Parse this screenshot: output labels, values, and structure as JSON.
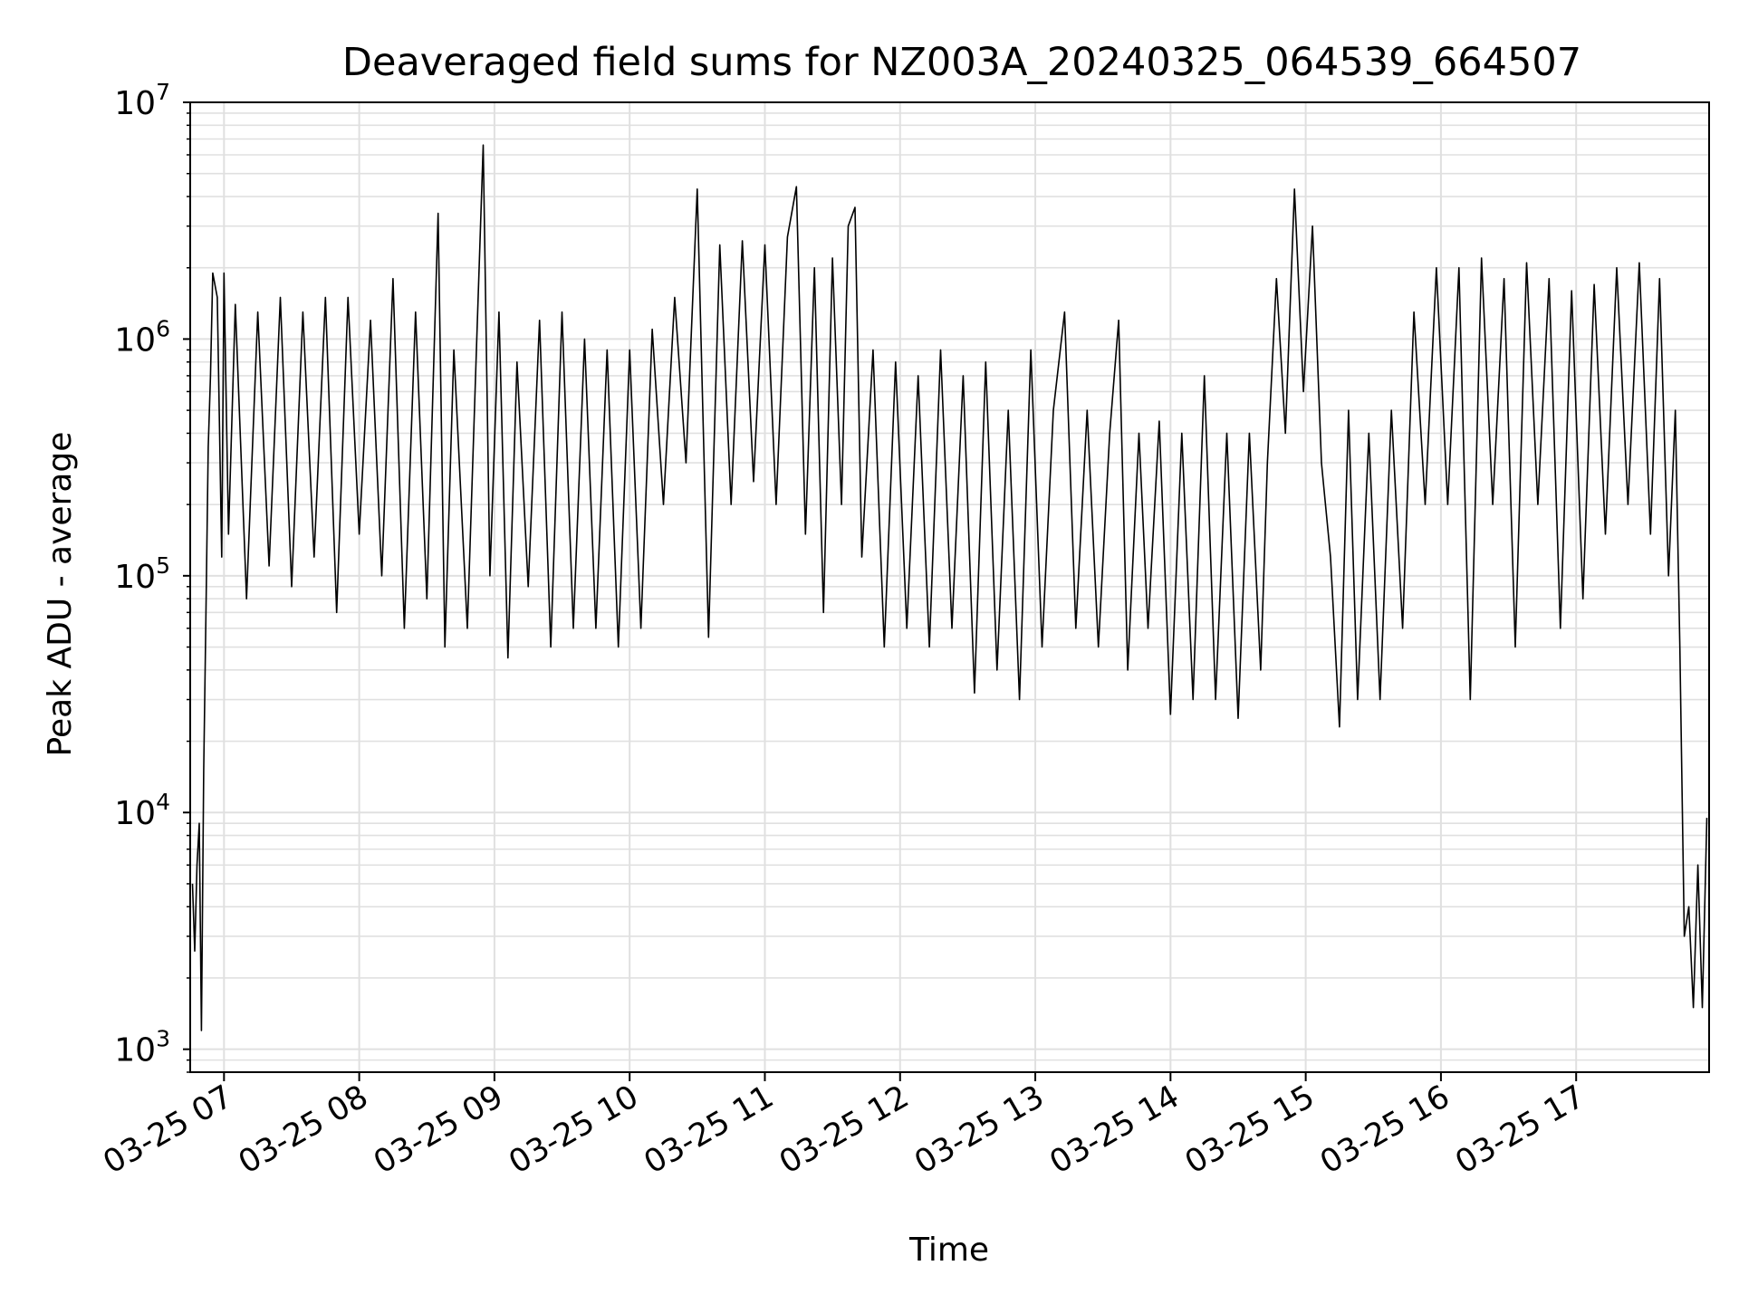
{
  "chart_data": {
    "type": "line",
    "title": "Deaveraged field sums for NZ003A_20240325_064539_664507",
    "xlabel": "Time",
    "ylabel": "Peak ADU - average",
    "yscale": "log",
    "ylim": [
      800,
      10000000
    ],
    "xlim": [
      "03-25 06:45",
      "03-25 17:59"
    ],
    "grid": true,
    "line_color": "#000000",
    "grid_color": "#e0e0e0",
    "x_ticks": [
      {
        "label": "03-25 07",
        "value": "03-25 07:00"
      },
      {
        "label": "03-25 08",
        "value": "03-25 08:00"
      },
      {
        "label": "03-25 09",
        "value": "03-25 09:00"
      },
      {
        "label": "03-25 10",
        "value": "03-25 10:00"
      },
      {
        "label": "03-25 11",
        "value": "03-25 11:00"
      },
      {
        "label": "03-25 12",
        "value": "03-25 12:00"
      },
      {
        "label": "03-25 13",
        "value": "03-25 13:00"
      },
      {
        "label": "03-25 14",
        "value": "03-25 14:00"
      },
      {
        "label": "03-25 15",
        "value": "03-25 15:00"
      },
      {
        "label": "03-25 16",
        "value": "03-25 16:00"
      },
      {
        "label": "03-25 17",
        "value": "03-25 17:00"
      }
    ],
    "y_ticks": [
      {
        "base": "10",
        "exp": "3",
        "value": 1000
      },
      {
        "base": "10",
        "exp": "4",
        "value": 10000
      },
      {
        "base": "10",
        "exp": "5",
        "value": 100000
      },
      {
        "base": "10",
        "exp": "6",
        "value": 1000000
      },
      {
        "base": "10",
        "exp": "7",
        "value": 10000000
      }
    ],
    "series": [
      {
        "points": [
          [
            "03-25 06:46",
            5000
          ],
          [
            "03-25 06:47",
            2600
          ],
          [
            "03-25 06:48",
            6000
          ],
          [
            "03-25 06:49",
            9000
          ],
          [
            "03-25 06:50",
            1200
          ],
          [
            "03-25 06:51",
            15000
          ],
          [
            "03-25 06:52",
            70000
          ],
          [
            "03-25 06:53",
            350000
          ],
          [
            "03-25 06:54",
            700000
          ],
          [
            "03-25 06:55",
            1900000
          ],
          [
            "03-25 06:57",
            1500000
          ],
          [
            "03-25 06:59",
            120000
          ],
          [
            "03-25 07:00",
            1900000
          ],
          [
            "03-25 07:02",
            150000
          ],
          [
            "03-25 07:05",
            1400000
          ],
          [
            "03-25 07:10",
            80000
          ],
          [
            "03-25 07:15",
            1300000
          ],
          [
            "03-25 07:20",
            110000
          ],
          [
            "03-25 07:25",
            1500000
          ],
          [
            "03-25 07:30",
            90000
          ],
          [
            "03-25 07:35",
            1300000
          ],
          [
            "03-25 07:40",
            120000
          ],
          [
            "03-25 07:45",
            1500000
          ],
          [
            "03-25 07:50",
            70000
          ],
          [
            "03-25 07:55",
            1500000
          ],
          [
            "03-25 08:00",
            150000
          ],
          [
            "03-25 08:05",
            1200000
          ],
          [
            "03-25 08:10",
            100000
          ],
          [
            "03-25 08:15",
            1800000
          ],
          [
            "03-25 08:20",
            60000
          ],
          [
            "03-25 08:25",
            1300000
          ],
          [
            "03-25 08:30",
            80000
          ],
          [
            "03-25 08:35",
            3400000
          ],
          [
            "03-25 08:38",
            50000
          ],
          [
            "03-25 08:42",
            900000
          ],
          [
            "03-25 08:48",
            60000
          ],
          [
            "03-25 08:52",
            900000
          ],
          [
            "03-25 08:55",
            6600000
          ],
          [
            "03-25 08:58",
            100000
          ],
          [
            "03-25 09:02",
            1300000
          ],
          [
            "03-25 09:06",
            45000
          ],
          [
            "03-25 09:10",
            800000
          ],
          [
            "03-25 09:15",
            90000
          ],
          [
            "03-25 09:20",
            1200000
          ],
          [
            "03-25 09:25",
            50000
          ],
          [
            "03-25 09:30",
            1300000
          ],
          [
            "03-25 09:35",
            60000
          ],
          [
            "03-25 09:40",
            1000000
          ],
          [
            "03-25 09:45",
            60000
          ],
          [
            "03-25 09:50",
            900000
          ],
          [
            "03-25 09:55",
            50000
          ],
          [
            "03-25 10:00",
            900000
          ],
          [
            "03-25 10:05",
            60000
          ],
          [
            "03-25 10:10",
            1100000
          ],
          [
            "03-25 10:15",
            200000
          ],
          [
            "03-25 10:20",
            1500000
          ],
          [
            "03-25 10:25",
            300000
          ],
          [
            "03-25 10:30",
            4300000
          ],
          [
            "03-25 10:35",
            55000
          ],
          [
            "03-25 10:40",
            2500000
          ],
          [
            "03-25 10:45",
            200000
          ],
          [
            "03-25 10:50",
            2600000
          ],
          [
            "03-25 10:55",
            250000
          ],
          [
            "03-25 11:00",
            2500000
          ],
          [
            "03-25 11:05",
            200000
          ],
          [
            "03-25 11:10",
            2700000
          ],
          [
            "03-25 11:14",
            4400000
          ],
          [
            "03-25 11:18",
            150000
          ],
          [
            "03-25 11:22",
            2000000
          ],
          [
            "03-25 11:26",
            70000
          ],
          [
            "03-25 11:30",
            2200000
          ],
          [
            "03-25 11:34",
            200000
          ],
          [
            "03-25 11:37",
            3000000
          ],
          [
            "03-25 11:40",
            3600000
          ],
          [
            "03-25 11:43",
            120000
          ],
          [
            "03-25 11:48",
            900000
          ],
          [
            "03-25 11:53",
            50000
          ],
          [
            "03-25 11:58",
            800000
          ],
          [
            "03-25 12:03",
            60000
          ],
          [
            "03-25 12:08",
            700000
          ],
          [
            "03-25 12:13",
            50000
          ],
          [
            "03-25 12:18",
            900000
          ],
          [
            "03-25 12:23",
            60000
          ],
          [
            "03-25 12:28",
            700000
          ],
          [
            "03-25 12:33",
            32000
          ],
          [
            "03-25 12:38",
            800000
          ],
          [
            "03-25 12:43",
            40000
          ],
          [
            "03-25 12:48",
            500000
          ],
          [
            "03-25 12:53",
            30000
          ],
          [
            "03-25 12:58",
            900000
          ],
          [
            "03-25 13:03",
            50000
          ],
          [
            "03-25 13:08",
            500000
          ],
          [
            "03-25 13:13",
            1300000
          ],
          [
            "03-25 13:18",
            60000
          ],
          [
            "03-25 13:23",
            500000
          ],
          [
            "03-25 13:28",
            50000
          ],
          [
            "03-25 13:33",
            400000
          ],
          [
            "03-25 13:37",
            1200000
          ],
          [
            "03-25 13:41",
            40000
          ],
          [
            "03-25 13:46",
            400000
          ],
          [
            "03-25 13:50",
            60000
          ],
          [
            "03-25 13:55",
            450000
          ],
          [
            "03-25 14:00",
            26000
          ],
          [
            "03-25 14:05",
            400000
          ],
          [
            "03-25 14:10",
            30000
          ],
          [
            "03-25 14:15",
            700000
          ],
          [
            "03-25 14:20",
            30000
          ],
          [
            "03-25 14:25",
            400000
          ],
          [
            "03-25 14:30",
            25000
          ],
          [
            "03-25 14:35",
            400000
          ],
          [
            "03-25 14:40",
            40000
          ],
          [
            "03-25 14:43",
            300000
          ],
          [
            "03-25 14:47",
            1800000
          ],
          [
            "03-25 14:51",
            400000
          ],
          [
            "03-25 14:55",
            4300000
          ],
          [
            "03-25 14:59",
            600000
          ],
          [
            "03-25 15:03",
            3000000
          ],
          [
            "03-25 15:07",
            300000
          ],
          [
            "03-25 15:11",
            120000
          ],
          [
            "03-25 15:15",
            23000
          ],
          [
            "03-25 15:19",
            500000
          ],
          [
            "03-25 15:23",
            30000
          ],
          [
            "03-25 15:28",
            400000
          ],
          [
            "03-25 15:33",
            30000
          ],
          [
            "03-25 15:38",
            500000
          ],
          [
            "03-25 15:43",
            60000
          ],
          [
            "03-25 15:48",
            1300000
          ],
          [
            "03-25 15:53",
            200000
          ],
          [
            "03-25 15:58",
            2000000
          ],
          [
            "03-25 16:03",
            200000
          ],
          [
            "03-25 16:08",
            2000000
          ],
          [
            "03-25 16:13",
            30000
          ],
          [
            "03-25 16:18",
            2200000
          ],
          [
            "03-25 16:23",
            200000
          ],
          [
            "03-25 16:28",
            1800000
          ],
          [
            "03-25 16:33",
            50000
          ],
          [
            "03-25 16:38",
            2100000
          ],
          [
            "03-25 16:43",
            200000
          ],
          [
            "03-25 16:48",
            1800000
          ],
          [
            "03-25 16:53",
            60000
          ],
          [
            "03-25 16:58",
            1600000
          ],
          [
            "03-25 17:03",
            80000
          ],
          [
            "03-25 17:08",
            1700000
          ],
          [
            "03-25 17:13",
            150000
          ],
          [
            "03-25 17:18",
            2000000
          ],
          [
            "03-25 17:23",
            200000
          ],
          [
            "03-25 17:28",
            2100000
          ],
          [
            "03-25 17:33",
            150000
          ],
          [
            "03-25 17:37",
            1800000
          ],
          [
            "03-25 17:41",
            100000
          ],
          [
            "03-25 17:44",
            500000
          ],
          [
            "03-25 17:46",
            50000
          ],
          [
            "03-25 17:48",
            3000
          ],
          [
            "03-25 17:50",
            4000
          ],
          [
            "03-25 17:52",
            1500
          ],
          [
            "03-25 17:54",
            6000
          ],
          [
            "03-25 17:56",
            1500
          ],
          [
            "03-25 17:58",
            9500
          ]
        ]
      }
    ]
  }
}
